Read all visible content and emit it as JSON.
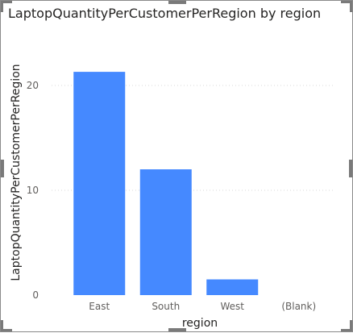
{
  "chart_data": {
    "type": "bar",
    "title": "LaptopQuantityPerCustomerPerRegion by region",
    "xlabel": "region",
    "ylabel": "LaptopQuantityPerCustomerPerRegion",
    "categories": [
      "East",
      "South",
      "West",
      "(Blank)"
    ],
    "values": [
      21.3,
      12.0,
      1.5,
      0
    ],
    "yticks": [
      0,
      10,
      20
    ],
    "ylim": [
      0,
      25
    ],
    "grid": true,
    "colors": {
      "bar": "#4589FF",
      "grid": "#d8d8d8"
    }
  }
}
